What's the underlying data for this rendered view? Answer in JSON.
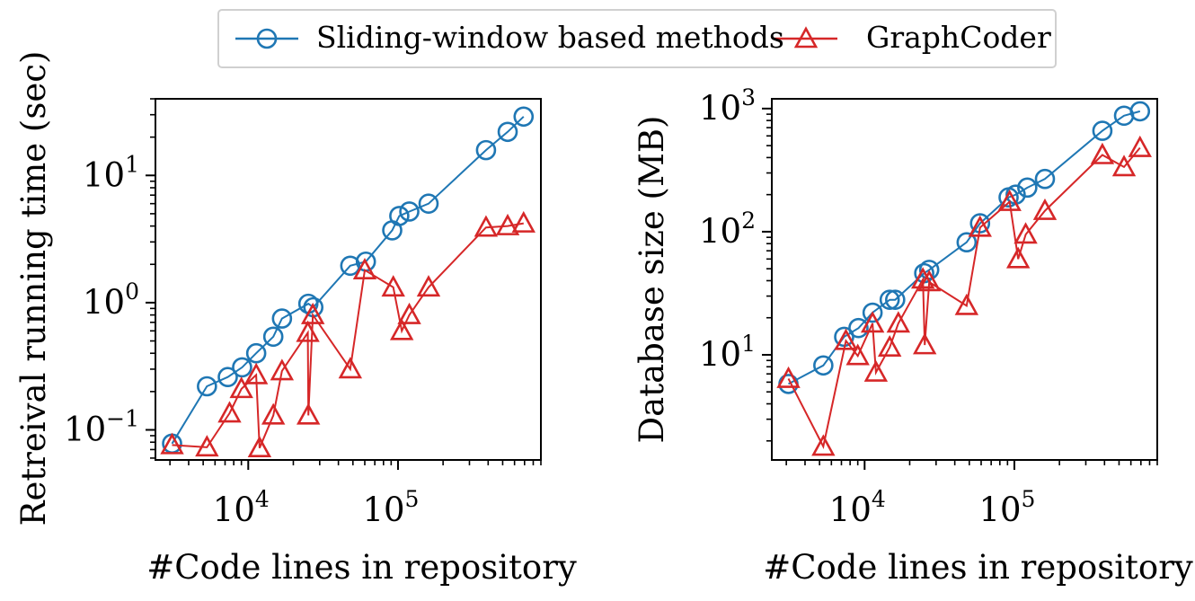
{
  "legend": {
    "items": [
      {
        "label": "Sliding-window based methods",
        "color": "#1f77b4",
        "marker": "circle"
      },
      {
        "label": "GraphCoder",
        "color": "#d62728",
        "marker": "triangle"
      }
    ]
  },
  "chart_data": [
    {
      "type": "line",
      "xscale": "log",
      "yscale": "log",
      "xlabel": "#Code lines in repository",
      "ylabel": "Retreival running time (sec)",
      "xlim": [
        2400,
        900000
      ],
      "ylim": [
        0.058,
        40
      ],
      "xticks": [
        {
          "value": 10000,
          "base": "10",
          "exp": "4"
        },
        {
          "value": 100000,
          "base": "10",
          "exp": "5"
        }
      ],
      "yticks": [
        {
          "value": 0.1,
          "base": "10",
          "exp": "−1"
        },
        {
          "value": 1,
          "base": "10",
          "exp": "0"
        },
        {
          "value": 10,
          "base": "10",
          "exp": "1"
        }
      ],
      "series": [
        {
          "name": "Sliding-window based methods",
          "color": "#1f77b4",
          "marker": "circle",
          "x": [
            3100,
            5300,
            7300,
            9100,
            11300,
            14700,
            16800,
            25200,
            27200,
            48000,
            61000,
            91500,
            102000,
            119000,
            160000,
            387000,
            540000,
            690000
          ],
          "y": [
            0.078,
            0.22,
            0.26,
            0.31,
            0.4,
            0.54,
            0.75,
            0.98,
            0.92,
            1.95,
            2.1,
            3.7,
            4.8,
            5.2,
            6.0,
            15.8,
            22.0,
            29.0
          ]
        },
        {
          "name": "GraphCoder",
          "color": "#d62728",
          "marker": "triangle",
          "x": [
            3100,
            5300,
            7500,
            9000,
            11300,
            11900,
            14700,
            16800,
            25000,
            25200,
            27000,
            48000,
            60000,
            93000,
            106000,
            119000,
            160000,
            387000,
            540000,
            690000
          ],
          "y": [
            0.076,
            0.073,
            0.135,
            0.21,
            0.27,
            0.072,
            0.13,
            0.29,
            0.58,
            0.13,
            0.8,
            0.3,
            1.8,
            1.32,
            0.6,
            0.8,
            1.32,
            3.9,
            4.0,
            4.2
          ]
        }
      ]
    },
    {
      "type": "line",
      "xscale": "log",
      "yscale": "log",
      "xlabel": "#Code lines in repository",
      "ylabel": "Database size (MB)",
      "xlim": [
        2400,
        900000
      ],
      "ylim": [
        1.4,
        1200
      ],
      "xticks": [
        {
          "value": 10000,
          "base": "10",
          "exp": "4"
        },
        {
          "value": 100000,
          "base": "10",
          "exp": "5"
        }
      ],
      "yticks": [
        {
          "value": 10,
          "base": "10",
          "exp": "1"
        },
        {
          "value": 100,
          "base": "10",
          "exp": "2"
        },
        {
          "value": 1000,
          "base": "10",
          "exp": "3"
        }
      ],
      "series": [
        {
          "name": "Sliding-window based methods",
          "color": "#1f77b4",
          "marker": "circle",
          "x": [
            3100,
            5300,
            7300,
            9100,
            11300,
            14700,
            16000,
            25000,
            27000,
            48000,
            59000,
            91500,
            102000,
            122000,
            160000,
            387000,
            540000,
            690000
          ],
          "y": [
            5.8,
            8.2,
            14,
            16.5,
            22,
            28,
            28,
            46,
            49,
            82,
            117,
            190,
            200,
            228,
            268,
            660,
            875,
            950
          ]
        },
        {
          "name": "GraphCoder",
          "color": "#d62728",
          "marker": "triangle",
          "x": [
            3100,
            5300,
            7500,
            9000,
            11300,
            11900,
            14700,
            16800,
            24500,
            25200,
            27000,
            48000,
            59000,
            93000,
            106000,
            119000,
            160000,
            387000,
            540000,
            690000
          ],
          "y": [
            6.4,
            1.8,
            13,
            9.8,
            18,
            7.2,
            11.5,
            18,
            41,
            12,
            39,
            25,
            108,
            175,
            60,
            95,
            148,
            420,
            335,
            480
          ]
        }
      ]
    }
  ]
}
